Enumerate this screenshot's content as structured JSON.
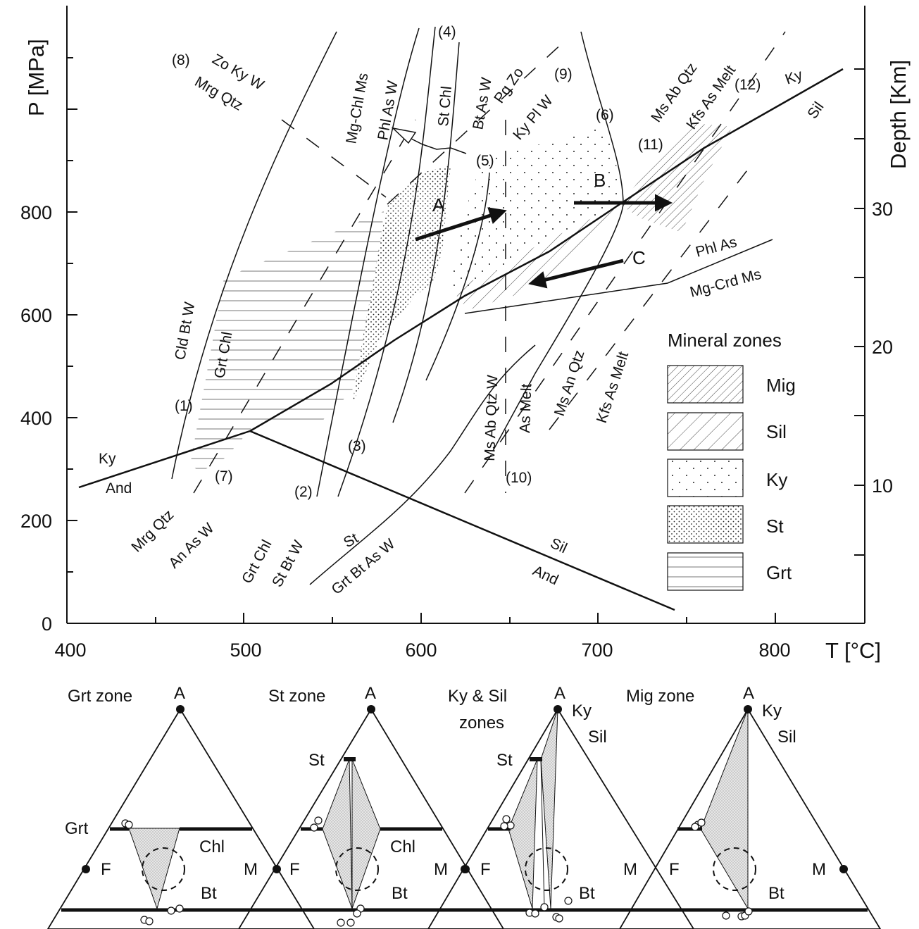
{
  "axes": {
    "y_title": "P [MPa]",
    "x_title": "T [°C]",
    "y2_title": "Depth [Km]",
    "x_ticks": [
      "400",
      "500",
      "600",
      "700",
      "800"
    ],
    "y_ticks": [
      "0",
      "200",
      "400",
      "600",
      "800"
    ],
    "depth_ticks": [
      "10",
      "20",
      "30"
    ],
    "x_range": [
      400,
      850
    ],
    "y_range": [
      0,
      1100
    ]
  },
  "stability_fields": {
    "ky_upper": "Ky",
    "and_lower": "And",
    "ky_right": "Ky",
    "sil_right": "Sil",
    "sil_lower": "Sil",
    "and_bottom": "And"
  },
  "reactions": {
    "r1_num": "(1)",
    "r1_top": "Cld Bt W",
    "r1_bottom": "Grt Chl",
    "r2_num": "(2)",
    "r2_top": "Grt Chl",
    "r2_bottom": "St Bt W",
    "r3_num": "(3)",
    "r4_num": "(4)",
    "r4_top": "St Chl",
    "r4_bottom": "Bt As W",
    "r5_num": "(5)",
    "r6_num": "(6)",
    "r7_num": "(7)",
    "r7_top": "Mrg Qtz",
    "r7_bottom": "An As W",
    "r8_num": "(8)",
    "r8_top": "Zo Ky W",
    "r8_bottom": "Mrg Qtz",
    "r9_num": "(9)",
    "r9_top": "Pg Zo",
    "r9_bottom": "Ky Pl W",
    "r10_num": "(10)",
    "r10_left": "Ms Ab Qtz W",
    "r10_right": "As Melt",
    "r11_num": "(11)",
    "r11_top": "Ms Ab Qtz",
    "r11_bottom": "Kfs As Melt",
    "r12_num": "(12)",
    "mgchl_top": "Mg-Chl Ms",
    "mgchl_bottom": "Phl As W",
    "st_top": "St",
    "st_bottom": "Grt Bt As W",
    "phl_top": "Phl As",
    "phl_bottom": "Mg-Crd Ms",
    "msan_top": "Ms An Qtz",
    "msan_bottom": "Kfs As Melt"
  },
  "paths": {
    "a": "A",
    "b": "B",
    "c": "C"
  },
  "legend": {
    "title": "Mineral zones",
    "items": [
      "Mig",
      "Sil",
      "Ky",
      "St",
      "Grt"
    ]
  },
  "triangles": [
    {
      "title": "Grt zone",
      "apex": "A",
      "left": "F",
      "right": "M",
      "labels": [
        "Grt",
        "Chl",
        "Bt"
      ]
    },
    {
      "title": "St zone",
      "apex": "A",
      "left": "F",
      "right": "M",
      "labels": [
        "St",
        "Chl",
        "Bt"
      ]
    },
    {
      "title": "Ky & Sil",
      "title2": "zones",
      "apex": "A",
      "left": "F",
      "right": "M",
      "labels": [
        "Ky",
        "Sil",
        "St",
        "Bt"
      ]
    },
    {
      "title": "Mig zone",
      "apex": "A",
      "left": "F",
      "right": "M",
      "labels": [
        "Ky",
        "Sil",
        "Bt"
      ]
    }
  ],
  "colors": {
    "ink": "#111111",
    "stipple": "#bdbdbd",
    "background": "#ffffff"
  }
}
